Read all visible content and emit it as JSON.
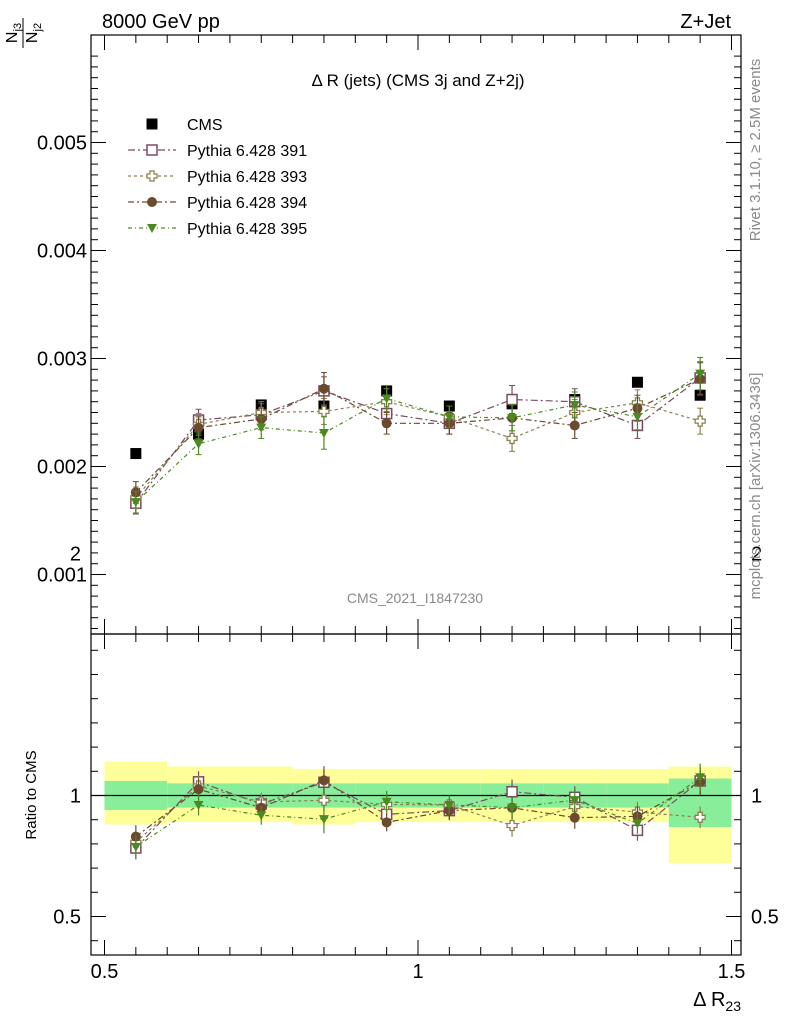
{
  "header": {
    "left": "8000 GeV pp",
    "right": "Z+Jet"
  },
  "side_labels": {
    "rivet": "Rivet 3.1.10, ≥ 2.5M events",
    "mcplots": "mcplots.cern.ch [arXiv:1306.3436]"
  },
  "chart_data": {
    "type": "scatter",
    "title": "Δ R (jets) (CMS 3j and Z+2j)",
    "analysis_label": "CMS_2021_I1847230",
    "xlabel": "Δ R",
    "xlabel_sub": "23",
    "ylabel_num": "N",
    "ylabel_num_sub": "j3",
    "ylabel_den": "N",
    "ylabel_den_sub": "j2",
    "xlim": [
      0.5,
      1.5
    ],
    "ylim": [
      0.0005,
      0.006
    ],
    "x_ticks": [
      "0.5",
      "1",
      "1.5"
    ],
    "y_ticks": [
      "0.001",
      "0.002",
      "0.003",
      "0.004",
      "0.005"
    ],
    "legend_position": "top-left",
    "x": [
      0.55,
      0.65,
      0.75,
      0.85,
      0.95,
      1.05,
      1.15,
      1.25,
      1.35,
      1.45
    ],
    "series": [
      {
        "name": "CMS",
        "marker": "filled-square",
        "color": "#000000",
        "values": [
          0.00212,
          0.0023,
          0.00257,
          0.00256,
          0.0027,
          0.00256,
          0.00258,
          0.00262,
          0.00278,
          0.00266
        ]
      },
      {
        "name": "Pythia 6.428 391",
        "marker": "open-square",
        "color": "#7a4a62",
        "values": [
          0.00166,
          0.00243,
          0.00248,
          0.0027,
          0.00249,
          0.0024,
          0.00262,
          0.0026,
          0.00238,
          0.00282
        ],
        "errors": [
          0.0001,
          0.0001,
          0.0001,
          0.00013,
          0.0001,
          0.0001,
          0.00013,
          0.00012,
          0.00012,
          0.00015
        ]
      },
      {
        "name": "Pythia 6.428 393",
        "marker": "open-cross",
        "color": "#8a8050",
        "values": [
          0.00171,
          0.00239,
          0.0025,
          0.00251,
          0.0026,
          0.00246,
          0.00226,
          0.0025,
          0.00259,
          0.00242
        ],
        "errors": [
          0.0001,
          0.0001,
          0.0001,
          0.00012,
          0.00012,
          0.0001,
          0.00012,
          0.00012,
          0.00012,
          0.00012
        ]
      },
      {
        "name": "Pythia 6.428 394",
        "marker": "filled-circle",
        "color": "#6b4a2e",
        "values": [
          0.00176,
          0.00236,
          0.00244,
          0.00272,
          0.0024,
          0.0024,
          0.00245,
          0.00238,
          0.00254,
          0.00281
        ],
        "errors": [
          0.0001,
          0.0001,
          0.0001,
          0.00015,
          0.0001,
          0.0001,
          0.00012,
          0.00012,
          0.00012,
          0.00015
        ]
      },
      {
        "name": "Pythia 6.428 395",
        "marker": "filled-triangle-down",
        "color": "#4a8a20",
        "values": [
          0.00167,
          0.00221,
          0.00236,
          0.00231,
          0.00263,
          0.00246,
          0.00245,
          0.00257,
          0.00246,
          0.00286
        ],
        "errors": [
          0.0001,
          0.0001,
          0.0001,
          0.00015,
          0.00012,
          0.0001,
          0.00012,
          0.00012,
          0.00012,
          0.00015
        ]
      }
    ],
    "ratio": {
      "ylabel": "Ratio to CMS",
      "ylim": [
        0.3,
        2.35
      ],
      "y_ticks": [
        "0.5",
        "1",
        "2"
      ],
      "band_edges": [
        0.5,
        0.6,
        0.7,
        0.8,
        0.9,
        1.0,
        1.1,
        1.2,
        1.3,
        1.4,
        1.5
      ],
      "band_inner": [
        [
          0.94,
          1.06
        ],
        [
          0.95,
          1.05
        ],
        [
          0.95,
          1.05
        ],
        [
          0.95,
          1.05
        ],
        [
          0.95,
          1.05
        ],
        [
          0.95,
          1.05
        ],
        [
          0.95,
          1.05
        ],
        [
          0.95,
          1.05
        ],
        [
          0.95,
          1.05
        ],
        [
          0.87,
          1.07
        ]
      ],
      "band_outer": [
        [
          0.88,
          1.14
        ],
        [
          0.89,
          1.12
        ],
        [
          0.89,
          1.12
        ],
        [
          0.88,
          1.11
        ],
        [
          0.89,
          1.11
        ],
        [
          0.89,
          1.11
        ],
        [
          0.89,
          1.11
        ],
        [
          0.89,
          1.11
        ],
        [
          0.89,
          1.11
        ],
        [
          0.72,
          1.12
        ]
      ],
      "band_inner_color": "#88ee99",
      "band_outer_color": "#ffff99"
    }
  }
}
